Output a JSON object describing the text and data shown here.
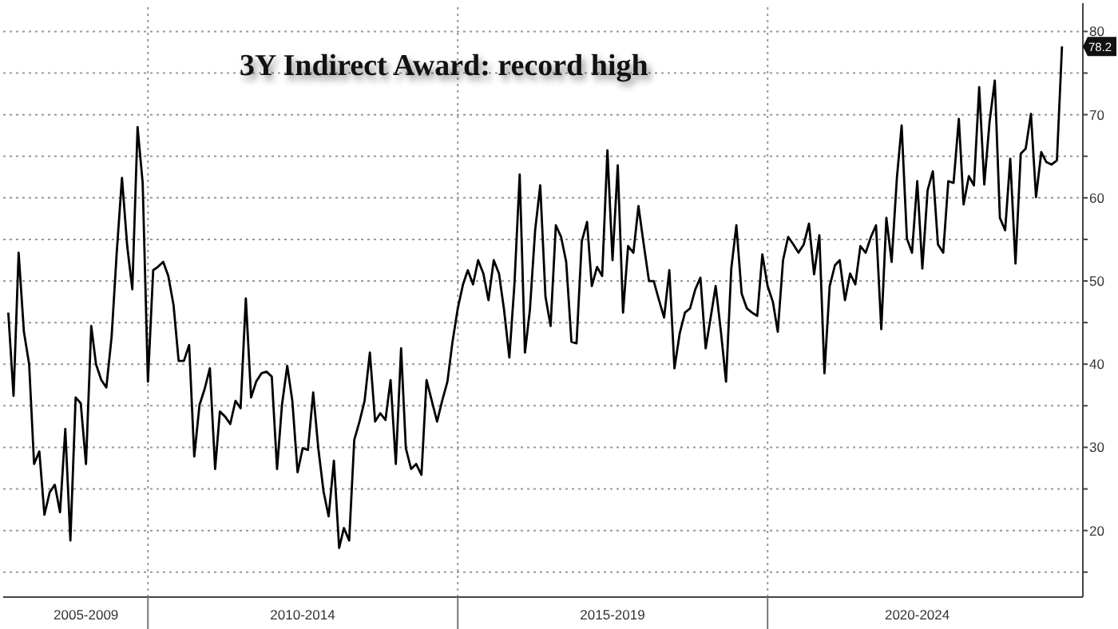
{
  "chart_data": {
    "type": "line",
    "title": "3Y Indirect Award: record high",
    "x": [
      "2007-10",
      "2007-11",
      "2007-12",
      "2008-01",
      "2008-02",
      "2008-03",
      "2008-04",
      "2008-05",
      "2008-06",
      "2008-07",
      "2008-08",
      "2008-09",
      "2008-10",
      "2008-11",
      "2008-12",
      "2009-01",
      "2009-02",
      "2009-03",
      "2009-04",
      "2009-05",
      "2009-06",
      "2009-07",
      "2009-08",
      "2009-09",
      "2009-10",
      "2009-11",
      "2009-12",
      "2010-01",
      "2010-02",
      "2010-03",
      "2010-04",
      "2010-05",
      "2010-06",
      "2010-07",
      "2010-08",
      "2010-09",
      "2010-10",
      "2010-11",
      "2010-12",
      "2011-01",
      "2011-02",
      "2011-03",
      "2011-04",
      "2011-05",
      "2011-06",
      "2011-07",
      "2011-08",
      "2011-09",
      "2011-10",
      "2011-11",
      "2011-12",
      "2012-01",
      "2012-02",
      "2012-03",
      "2012-04",
      "2012-05",
      "2012-06",
      "2012-07",
      "2012-08",
      "2012-09",
      "2012-10",
      "2012-11",
      "2012-12",
      "2013-01",
      "2013-02",
      "2013-03",
      "2013-04",
      "2013-05",
      "2013-06",
      "2013-07",
      "2013-08",
      "2013-09",
      "2013-10",
      "2013-11",
      "2013-12",
      "2014-01",
      "2014-02",
      "2014-03",
      "2014-04",
      "2014-05",
      "2014-06",
      "2014-07",
      "2014-08",
      "2014-09",
      "2014-10",
      "2014-11",
      "2014-12",
      "2015-01",
      "2015-02",
      "2015-03",
      "2015-04",
      "2015-05",
      "2015-06",
      "2015-07",
      "2015-08",
      "2015-09",
      "2015-10",
      "2015-11",
      "2015-12",
      "2016-01",
      "2016-02",
      "2016-03",
      "2016-04",
      "2016-05",
      "2016-06",
      "2016-07",
      "2016-08",
      "2016-09",
      "2016-10",
      "2016-11",
      "2016-12",
      "2017-01",
      "2017-02",
      "2017-03",
      "2017-04",
      "2017-05",
      "2017-06",
      "2017-07",
      "2017-08",
      "2017-09",
      "2017-10",
      "2017-11",
      "2017-12",
      "2018-01",
      "2018-02",
      "2018-03",
      "2018-04",
      "2018-05",
      "2018-06",
      "2018-07",
      "2018-08",
      "2018-09",
      "2018-10",
      "2018-11",
      "2018-12",
      "2019-01",
      "2019-02",
      "2019-03",
      "2019-04",
      "2019-05",
      "2019-06",
      "2019-07",
      "2019-08",
      "2019-09",
      "2019-10",
      "2019-11",
      "2019-12",
      "2020-01",
      "2020-02",
      "2020-03",
      "2020-04",
      "2020-05",
      "2020-06",
      "2020-07",
      "2020-08",
      "2020-09",
      "2020-10",
      "2020-11",
      "2020-12",
      "2021-01",
      "2021-02",
      "2021-03",
      "2021-04",
      "2021-05",
      "2021-06",
      "2021-07",
      "2021-08",
      "2021-09",
      "2021-10",
      "2021-11",
      "2021-12",
      "2022-01",
      "2022-02",
      "2022-03",
      "2022-04",
      "2022-05",
      "2022-06",
      "2022-07",
      "2022-08",
      "2022-09",
      "2022-10",
      "2022-11",
      "2022-12",
      "2023-01",
      "2023-02",
      "2023-03",
      "2023-04",
      "2023-05",
      "2023-06",
      "2023-07",
      "2023-08",
      "2023-09",
      "2023-10",
      "2023-11",
      "2023-12",
      "2024-01",
      "2024-02",
      "2024-03",
      "2024-04",
      "2024-05",
      "2024-06",
      "2024-07",
      "2024-08",
      "2024-09",
      "2024-10"
    ],
    "series": [
      {
        "color": "#000000",
        "values": [
          46.2,
          36.2,
          53.4,
          43.9,
          40.0,
          28.0,
          29.5,
          21.9,
          24.6,
          25.5,
          22.2,
          32.2,
          18.8,
          36.0,
          35.3,
          28.0,
          44.6,
          40.0,
          38.1,
          37.2,
          43.3,
          53.4,
          62.4,
          54.2,
          49.0,
          68.5,
          61.8,
          37.9,
          51.3,
          51.7,
          52.3,
          50.6,
          47.1,
          40.4,
          40.4,
          42.3,
          28.9,
          35.1,
          37.0,
          39.5,
          27.4,
          34.3,
          33.7,
          32.8,
          35.6,
          34.7,
          47.9,
          36.0,
          37.9,
          38.9,
          39.1,
          38.5,
          27.4,
          35.1,
          39.8,
          35.6,
          27.0,
          29.9,
          29.7,
          36.6,
          29.9,
          24.7,
          21.7,
          28.4,
          17.9,
          20.3,
          18.8,
          30.9,
          33.1,
          35.6,
          41.4,
          33.1,
          34.1,
          33.3,
          38.1,
          28.0,
          41.9,
          29.9,
          27.4,
          28.0,
          26.7,
          38.1,
          35.6,
          33.1,
          35.6,
          37.9,
          42.7,
          46.7,
          49.6,
          51.3,
          49.6,
          52.5,
          50.9,
          47.7,
          52.5,
          50.9,
          46.5,
          40.8,
          49.6,
          62.8,
          41.4,
          46.5,
          56.1,
          61.5,
          48.1,
          44.6,
          56.7,
          55.3,
          52.3,
          42.7,
          42.5,
          54.8,
          57.1,
          49.4,
          51.7,
          50.6,
          65.7,
          52.5,
          63.9,
          46.2,
          54.2,
          53.4,
          59.0,
          54.4,
          50.0,
          50.0,
          47.7,
          45.6,
          51.3,
          39.5,
          43.7,
          46.2,
          46.7,
          49.0,
          50.4,
          41.9,
          45.8,
          49.4,
          43.9,
          37.9,
          51.5,
          56.7,
          48.5,
          46.7,
          46.2,
          45.8,
          53.2,
          49.4,
          47.5,
          43.9,
          52.5,
          55.3,
          54.4,
          53.4,
          54.4,
          56.9,
          50.8,
          55.5,
          38.9,
          49.4,
          51.9,
          52.5,
          47.7,
          50.9,
          49.6,
          54.2,
          53.4,
          55.3,
          56.7,
          44.2,
          57.6,
          52.3,
          62.4,
          68.7,
          55.1,
          53.4,
          62.0,
          51.5,
          60.9,
          63.2,
          54.4,
          53.4,
          62.0,
          61.8,
          69.5,
          59.2,
          62.6,
          61.5,
          73.3,
          61.6,
          69.1,
          74.1,
          57.6,
          56.1,
          64.7,
          52.1,
          65.3,
          65.9,
          70.1,
          60.1,
          65.5,
          64.3,
          64.0,
          64.5,
          78.2
        ]
      }
    ],
    "xlim": [
      "2007-09",
      "2025-02"
    ],
    "xticks": [
      {
        "value": "2009-01",
        "label": "2005-2009"
      },
      {
        "value": "2010-01",
        "label": null
      },
      {
        "value": "2012-07",
        "label": "2010-2014"
      },
      {
        "value": "2015-01",
        "label": null
      },
      {
        "value": "2017-07",
        "label": "2015-2019"
      },
      {
        "value": "2020-01",
        "label": null
      },
      {
        "value": "2022-06",
        "label": "2020-2024"
      }
    ],
    "ylim": [
      12,
      83.4
    ],
    "yticks": [
      {
        "value": 15,
        "label": null
      },
      20,
      {
        "value": 25,
        "label": null
      },
      30,
      {
        "value": 35,
        "label": null
      },
      40,
      {
        "value": 45,
        "label": null
      },
      50,
      {
        "value": 55,
        "label": null
      },
      60,
      {
        "value": 65,
        "label": null
      },
      70,
      {
        "value": 75,
        "label": null
      },
      80
    ],
    "grid": true,
    "annotations": [
      {
        "text": "78.2",
        "x": "2024-10",
        "y": 78.2
      }
    ]
  }
}
